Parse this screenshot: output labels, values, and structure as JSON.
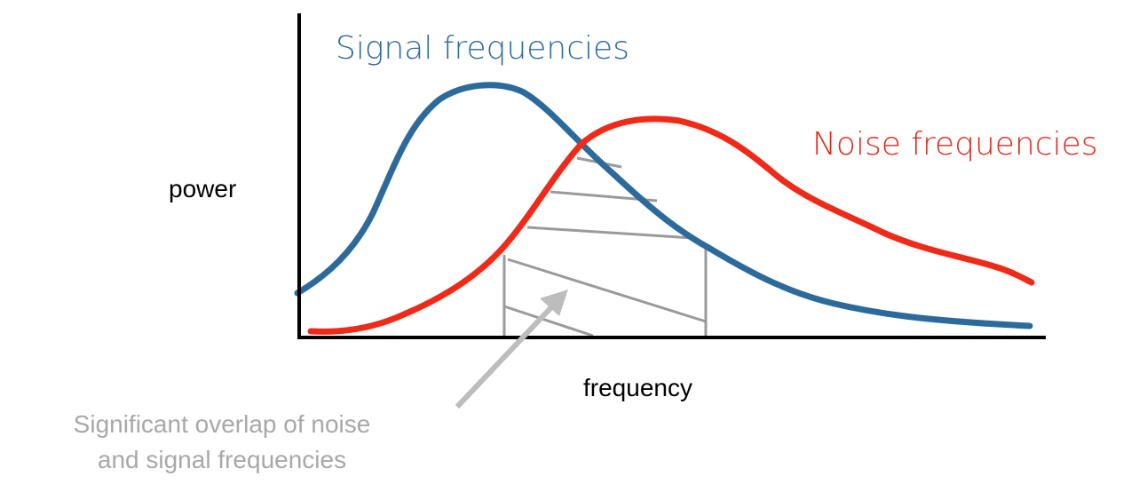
{
  "diagram": {
    "signal_label": "Signal frequencies",
    "noise_label": "Noise frequencies",
    "y_axis_label": "power",
    "x_axis_label": "frequency",
    "annotation": [
      "Significant overlap of noise",
      "and signal frequencies"
    ]
  }
}
